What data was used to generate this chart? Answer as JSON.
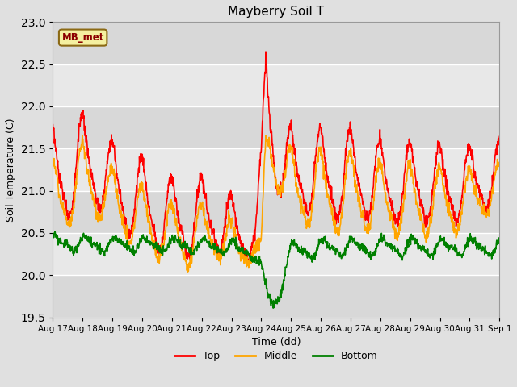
{
  "title": "Mayberry Soil T",
  "xlabel": "Time (dd)",
  "ylabel": "Soil Temperature (C)",
  "ylim": [
    19.5,
    23.0
  ],
  "legend_label": "MB_met",
  "line_labels": [
    "Top",
    "Middle",
    "Bottom"
  ],
  "line_colors": [
    "red",
    "orange",
    "green"
  ],
  "xtick_labels": [
    "Aug 17",
    "Aug 18",
    "Aug 19",
    "Aug 20",
    "Aug 21",
    "Aug 22",
    "Aug 23",
    "Aug 24",
    "Aug 25",
    "Aug 26",
    "Aug 27",
    "Aug 28",
    "Aug 29",
    "Aug 30",
    "Aug 31",
    "Sep 1"
  ],
  "bg_color": "#e0e0e0",
  "plot_bg_color": "#d8d8d8",
  "band_light": "#e8e8e8",
  "band_dark": "#c8c8c8",
  "n_points": 1440
}
